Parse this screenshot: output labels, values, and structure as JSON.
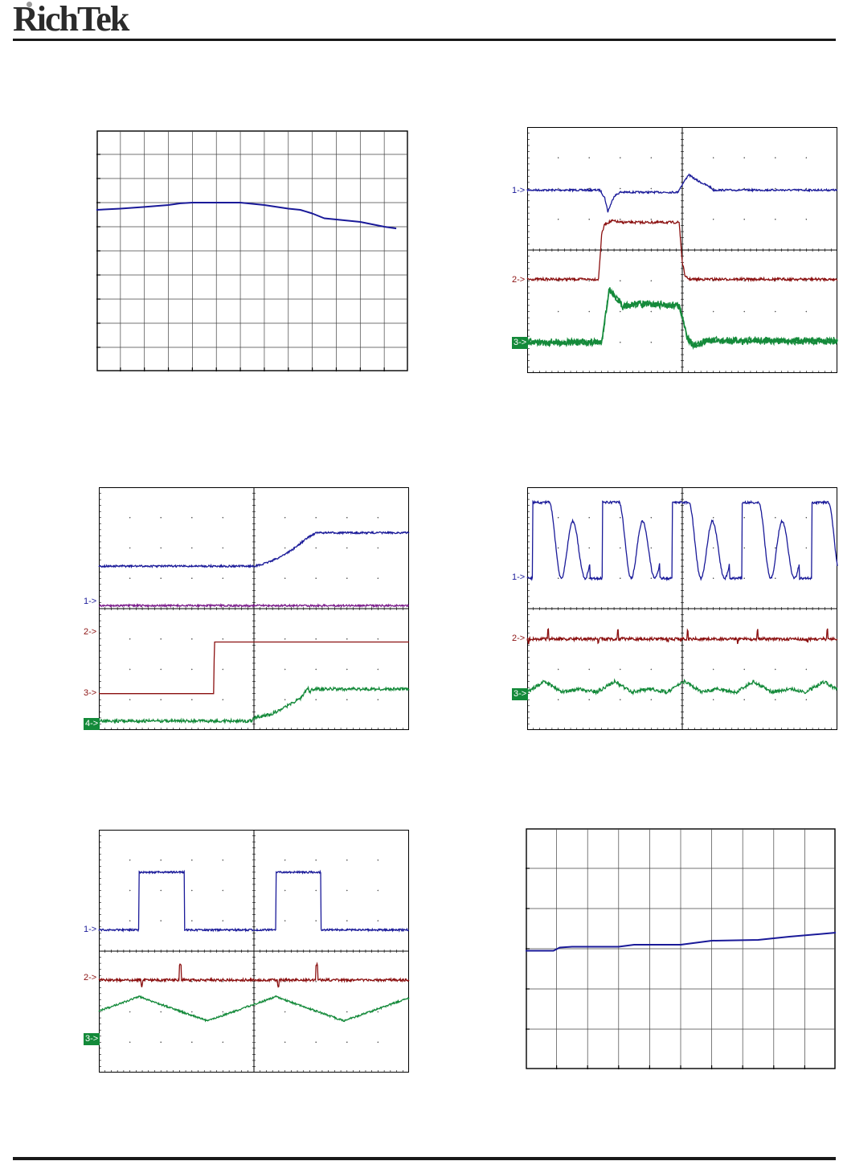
{
  "header": {
    "logo_text": "RichTek"
  },
  "colors": {
    "blue": "#1a1a99",
    "red": "#8b1010",
    "green": "#148a3a",
    "purple": "#7a1a8a",
    "grid": "#000000"
  },
  "charts": [
    {
      "id": "chart-1",
      "type": "line",
      "grid": "solid",
      "divisions": [
        13,
        10
      ],
      "series": [
        {
          "color": "blue",
          "x": [
            0,
            1,
            2,
            3,
            3.5,
            4,
            5,
            6,
            7,
            8,
            8.5,
            9,
            9.5,
            10,
            11,
            12,
            12.5
          ],
          "y": [
            6.7,
            6.75,
            6.82,
            6.9,
            6.97,
            7.0,
            7.0,
            7.0,
            6.9,
            6.75,
            6.7,
            6.55,
            6.35,
            6.3,
            6.2,
            6.0,
            5.93
          ]
        }
      ]
    },
    {
      "id": "chart-2",
      "type": "scope",
      "divisions": [
        2,
        8
      ],
      "markers": [
        {
          "label": "1->",
          "div": 2.1,
          "color": "blue",
          "boxed": false
        },
        {
          "label": "2->",
          "div": 5.0,
          "color": "red",
          "boxed": false
        },
        {
          "label": "3->",
          "div": 7.0,
          "color": "green",
          "boxed": true
        }
      ],
      "series": [
        {
          "color": "blue",
          "noise": 0.03,
          "x": [
            0,
            0.47,
            0.5,
            0.52,
            0.56,
            0.6,
            0.64,
            0.97,
            0.99,
            1.04,
            1.1,
            1.18,
            1.2,
            2.0
          ],
          "y": [
            2.05,
            2.05,
            2.3,
            2.75,
            2.25,
            2.12,
            2.12,
            2.12,
            1.95,
            1.55,
            1.75,
            1.95,
            2.05,
            2.05
          ]
        },
        {
          "color": "red",
          "noise": 0.04,
          "x": [
            0,
            0.46,
            0.48,
            0.5,
            0.55,
            0.6,
            0.98,
            1.0,
            1.02,
            1.05,
            2.0
          ],
          "y": [
            4.95,
            4.95,
            3.5,
            3.15,
            3.05,
            3.1,
            3.1,
            4.4,
            4.88,
            4.95,
            4.95
          ]
        },
        {
          "color": "green",
          "noise": 0.07,
          "x": [
            0,
            0.48,
            0.53,
            0.57,
            0.62,
            0.7,
            0.98,
            1.03,
            1.07,
            1.1,
            1.15,
            1.2,
            2.0
          ],
          "y": [
            7.0,
            7.0,
            5.25,
            5.55,
            5.85,
            5.75,
            5.8,
            6.8,
            7.1,
            7.1,
            6.95,
            6.95,
            6.95
          ],
          "band": 0.25
        }
      ]
    },
    {
      "id": "chart-3",
      "type": "scope",
      "divisions": [
        2,
        8
      ],
      "markers": [
        {
          "label": "1->",
          "div": 3.8,
          "color": "blue",
          "boxed": false
        },
        {
          "label": "2->",
          "div": 4.8,
          "color": "red",
          "boxed": false
        },
        {
          "label": "3->",
          "div": 6.8,
          "color": "red",
          "boxed": false
        },
        {
          "label": "4->",
          "div": 7.8,
          "color": "green",
          "boxed": true
        }
      ],
      "series": [
        {
          "color": "blue",
          "noise": 0.03,
          "x": [
            0,
            1.0,
            1.05,
            1.15,
            1.25,
            1.35,
            1.4,
            2.0
          ],
          "y": [
            2.6,
            2.6,
            2.55,
            2.35,
            2.05,
            1.65,
            1.5,
            1.5
          ]
        },
        {
          "color": "purple",
          "noise": 0.03,
          "x": [
            0,
            2.0
          ],
          "y": [
            3.9,
            3.9
          ]
        },
        {
          "color": "red",
          "noise": 0,
          "x": [
            0,
            0.74,
            0.745,
            2.0
          ],
          "y": [
            6.8,
            6.8,
            5.1,
            5.1
          ]
        },
        {
          "color": "green",
          "noise": 0.05,
          "x": [
            0,
            0.99,
            1.0,
            1.1,
            1.2,
            1.3,
            1.35,
            1.36,
            1.38,
            1.6,
            2.0
          ],
          "y": [
            7.7,
            7.7,
            7.6,
            7.5,
            7.25,
            6.95,
            6.6,
            6.75,
            6.65,
            6.65,
            6.65
          ]
        }
      ]
    },
    {
      "id": "chart-4",
      "type": "scope",
      "divisions": [
        2,
        8
      ],
      "markers": [
        {
          "label": "1->",
          "div": 3.0,
          "color": "blue",
          "boxed": false
        },
        {
          "label": "2->",
          "div": 5.0,
          "color": "red",
          "boxed": false
        },
        {
          "label": "3->",
          "div": 6.8,
          "color": "green",
          "boxed": true
        }
      ],
      "series": [
        {
          "color": "blue",
          "noise": 0.04,
          "wave": "ringing",
          "period": 0.45,
          "base": 3.0,
          "amp": 2.5
        },
        {
          "color": "red",
          "noise": 0.05,
          "wave": "flat-spikes",
          "period": 0.45,
          "base": 5.0,
          "amp": 0.3
        },
        {
          "color": "green",
          "noise": 0.06,
          "wave": "double-tri",
          "period": 0.45,
          "base": 6.6,
          "amp": 0.5
        }
      ]
    },
    {
      "id": "chart-5",
      "type": "scope",
      "divisions": [
        2,
        8
      ],
      "markers": [
        {
          "label": "1->",
          "div": 3.3,
          "color": "blue",
          "boxed": false
        },
        {
          "label": "2->",
          "div": 4.9,
          "color": "red",
          "boxed": false
        },
        {
          "label": "3->",
          "div": 6.9,
          "color": "green",
          "boxed": true
        }
      ],
      "series": [
        {
          "color": "blue",
          "noise": 0.03,
          "wave": "square",
          "period": 0.88,
          "base": 3.3,
          "amp": 1.9,
          "duty": 0.33,
          "phase": 0.26
        },
        {
          "color": "red",
          "noise": 0.04,
          "wave": "flat-spikes",
          "period": 0.88,
          "base": 4.95,
          "amp": 0.5,
          "phase": 0.26
        },
        {
          "color": "green",
          "noise": 0.03,
          "wave": "triangle",
          "period": 0.88,
          "base": 5.9,
          "amp": 0.8,
          "phase": 0.26
        }
      ]
    },
    {
      "id": "chart-6",
      "type": "line",
      "grid": "solid",
      "divisions": [
        10,
        6
      ],
      "series": [
        {
          "color": "blue",
          "x": [
            0,
            0.9,
            1.1,
            1.5,
            3.0,
            3.5,
            5.0,
            6.0,
            7.5,
            8.5,
            10.0
          ],
          "y": [
            2.95,
            2.95,
            3.03,
            3.05,
            3.05,
            3.1,
            3.1,
            3.2,
            3.22,
            3.3,
            3.4
          ]
        }
      ]
    }
  ]
}
